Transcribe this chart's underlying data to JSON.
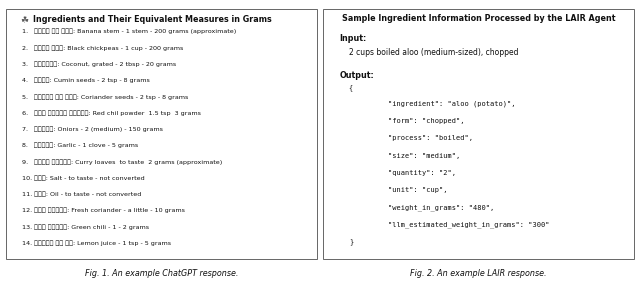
{
  "left_title": "Ingredients and Their Equivalent Measures in Grams",
  "left_items": [
    "1.   केले का तना: Banana stem - 1 stem - 200 grams (approximate)",
    "2.   काला चना: Black chickpeas - 1 cup - 200 grams",
    "3.   नारियल: Coconut, grated - 2 tbsp - 20 grams",
    "4.   जीरा: Cumin seeds - 2 tsp - 8 grams",
    "5.   धनिये के बीज: Coriander seeds - 2 tsp - 8 grams",
    "6.   लाल मिर्च पाउडर: Red chil powder  1.5 tsp  3 grams",
    "7.   प्याज: Oniors - 2 (medium) - 150 grams",
    "8.   लहसुन: Garlic - 1 clove - 5 grams",
    "9.   कढ़ी पत्ता: Curry loaves  to taste  2 grams (approximate)",
    "10. नमक: Salt - to taste - not converted",
    "11. तेल: Oil - to taste - not converted",
    "12. हरा धनिया: Fresh coriander - a little - 10 grams",
    "13. हरी मिर्च: Green chili - 1 - 2 grams",
    "14. निंबू का रस: Lemon juice - 1 tsp - 5 grams"
  ],
  "right_title": "Sample Ingredient Information Processed by the LAIR Agent",
  "right_input_label": "Input:",
  "right_input_text": "2 cups boiled aloo (medium-sized), chopped",
  "right_output_label": "Output:",
  "right_json_lines": [
    "{",
    "    \"ingredient\": \"aloo (potato)\",",
    "    \"form\": \"chopped\",",
    "    \"process\": \"boiled\",",
    "    \"size\": \"medium\",",
    "    \"quantity\": \"2\",",
    "    \"unit\": \"cup\",",
    "    \"weight_in_grams\": \"480\",",
    "    \"llm_estimated_weight_in_grams\": \"300\"",
    "}"
  ],
  "caption_left": "Fig. 1. An example ChatGPT response.",
  "caption_right": "Fig. 2. An example LAIR response.",
  "bg_color": "#ffffff",
  "border_color": "#666666",
  "text_color": "#111111",
  "icon": "☘"
}
